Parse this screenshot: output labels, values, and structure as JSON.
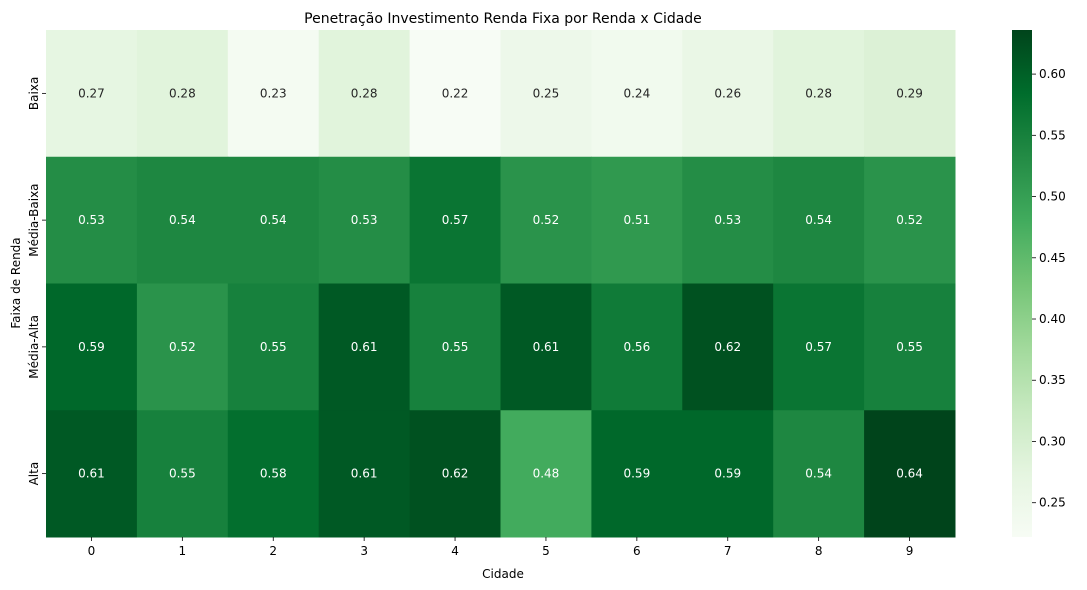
{
  "chart_data": {
    "type": "heatmap",
    "title": "Penetração Investimento Renda Fixa por Renda x Cidade",
    "xlabel": "Cidade",
    "ylabel": "Faixa de Renda",
    "x_categories": [
      "0",
      "1",
      "2",
      "3",
      "4",
      "5",
      "6",
      "7",
      "8",
      "9"
    ],
    "y_categories": [
      "Baixa",
      "Média-Baixa",
      "Média-Alta",
      "Alta"
    ],
    "values": [
      [
        0.27,
        0.28,
        0.23,
        0.28,
        0.22,
        0.25,
        0.24,
        0.26,
        0.28,
        0.29
      ],
      [
        0.53,
        0.54,
        0.54,
        0.53,
        0.57,
        0.52,
        0.51,
        0.53,
        0.54,
        0.52
      ],
      [
        0.59,
        0.52,
        0.55,
        0.61,
        0.55,
        0.61,
        0.56,
        0.62,
        0.57,
        0.55
      ],
      [
        0.61,
        0.55,
        0.58,
        0.61,
        0.62,
        0.48,
        0.59,
        0.59,
        0.54,
        0.64
      ]
    ],
    "colorbar": {
      "min": 0.222,
      "max": 0.636,
      "ticks": [
        "0.25",
        "0.30",
        "0.35",
        "0.40",
        "0.45",
        "0.50",
        "0.55",
        "0.60"
      ]
    },
    "colormap": "Greens",
    "annotations": true,
    "grid": false
  }
}
